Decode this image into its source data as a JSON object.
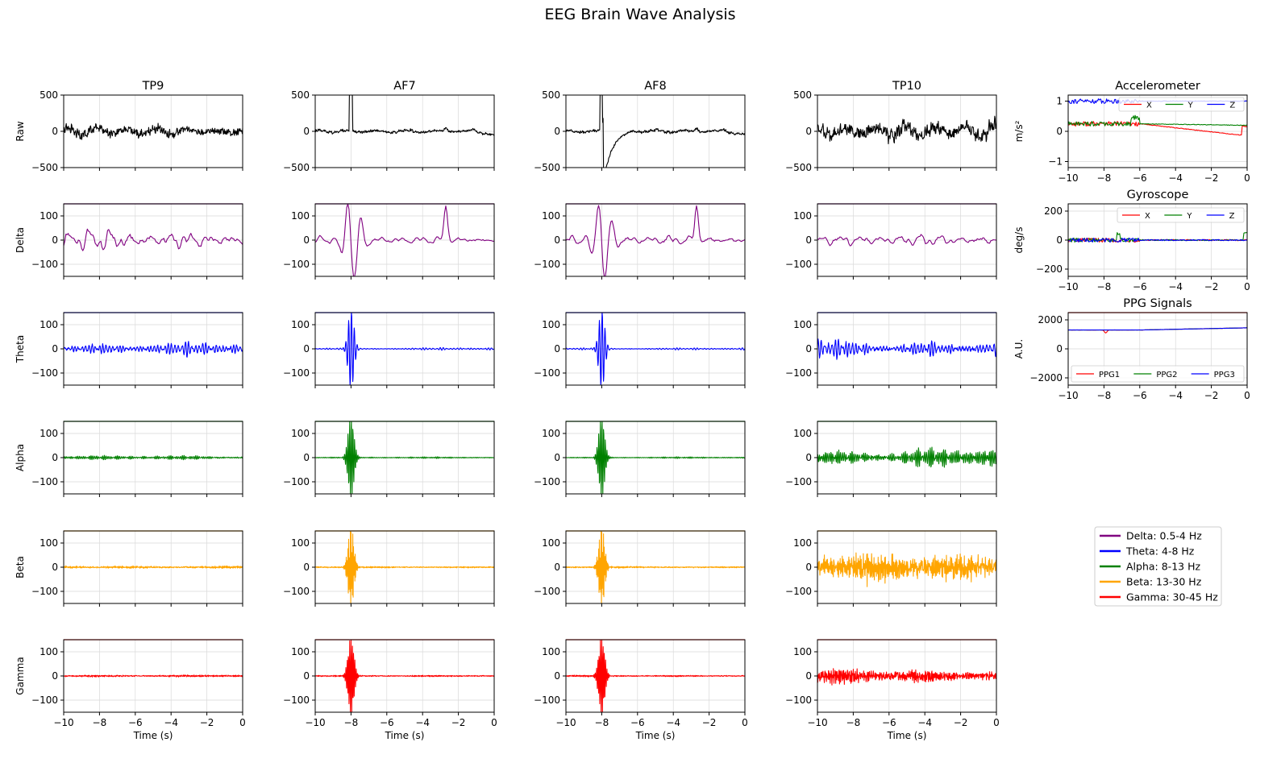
{
  "title": "EEG Brain Wave Analysis",
  "chart_data": {
    "type": "line",
    "title": "EEG Brain Wave Analysis",
    "xlabel": "Time (s)",
    "xlim": [
      -10,
      0
    ],
    "x_ticks": [
      -10,
      -8,
      -6,
      -4,
      -2,
      0
    ],
    "channels": [
      "TP9",
      "AF7",
      "AF8",
      "TP10"
    ],
    "rows": [
      {
        "name": "Raw",
        "color": "#000000",
        "ylim": [
          -500,
          500
        ],
        "yticks": [
          -500,
          0,
          500
        ]
      },
      {
        "name": "Delta",
        "color": "#800080",
        "ylim": [
          -150,
          150
        ],
        "yticks": [
          -100,
          0,
          100
        ]
      },
      {
        "name": "Theta",
        "color": "#0000ff",
        "ylim": [
          -150,
          150
        ],
        "yticks": [
          -100,
          0,
          100
        ]
      },
      {
        "name": "Alpha",
        "color": "#008000",
        "ylim": [
          -150,
          150
        ],
        "yticks": [
          -100,
          0,
          100
        ]
      },
      {
        "name": "Beta",
        "color": "#ffa500",
        "ylim": [
          -150,
          150
        ],
        "yticks": [
          -100,
          0,
          100
        ]
      },
      {
        "name": "Gamma",
        "color": "#ff0000",
        "ylim": [
          -150,
          150
        ],
        "yticks": [
          -100,
          0,
          100
        ]
      }
    ],
    "signal_amplitudes": {
      "Raw": {
        "TP9": 80,
        "AF7": 25,
        "AF8": 25,
        "TP10": 130
      },
      "Delta": {
        "TP9": 50,
        "AF7": 20,
        "AF8": 20,
        "TP10": 22
      },
      "Theta": {
        "TP9": 25,
        "AF7": 5,
        "AF8": 5,
        "TP10": 40
      },
      "Alpha": {
        "TP9": 8,
        "AF7": 3,
        "AF8": 3,
        "TP10": 40
      },
      "Beta": {
        "TP9": 5,
        "AF7": 3,
        "AF8": 3,
        "TP10": 50
      },
      "Gamma": {
        "TP9": 4,
        "AF7": 3,
        "AF8": 3,
        "TP10": 25
      }
    },
    "artifact_time": -8,
    "sensors": [
      {
        "title": "Accelerometer",
        "ylabel": "m/s²",
        "ylim": [
          -1.2,
          1.2
        ],
        "yticks": [
          -1,
          0,
          1
        ],
        "series": [
          {
            "name": "X",
            "color": "#ff0000",
            "level": 0.25,
            "end_level": -0.15
          },
          {
            "name": "Y",
            "color": "#008000",
            "level": 0.25,
            "end_level": 0.2
          },
          {
            "name": "Z",
            "color": "#0000ff",
            "level": 1.0,
            "end_level": 1.0
          }
        ]
      },
      {
        "title": "Gyroscope",
        "ylabel": "deg/s",
        "ylim": [
          -250,
          250
        ],
        "yticks": [
          -200,
          0,
          200
        ],
        "series": [
          {
            "name": "X",
            "color": "#ff0000",
            "level": 0,
            "end_level": 0
          },
          {
            "name": "Y",
            "color": "#008000",
            "level": 0,
            "end_level": 0
          },
          {
            "name": "Z",
            "color": "#0000ff",
            "level": 0,
            "end_level": 0
          }
        ]
      },
      {
        "title": "PPG Signals",
        "ylabel": "A.U.",
        "ylim": [
          -2500,
          2500
        ],
        "yticks": [
          -2000,
          0,
          2000
        ],
        "series": [
          {
            "name": "PPG1",
            "color": "#ff0000",
            "level": 1300,
            "end_level": 1450
          },
          {
            "name": "PPG2",
            "color": "#008000",
            "level": 1300,
            "end_level": 1450
          },
          {
            "name": "PPG3",
            "color": "#0000ff",
            "level": 1300,
            "end_level": 1450
          }
        ]
      }
    ],
    "band_legend": [
      {
        "label": "Delta: 0.5-4 Hz",
        "color": "#800080"
      },
      {
        "label": "Theta: 4-8 Hz",
        "color": "#0000ff"
      },
      {
        "label": "Alpha: 8-13 Hz",
        "color": "#008000"
      },
      {
        "label": "Beta: 13-30 Hz",
        "color": "#ffa500"
      },
      {
        "label": "Gamma: 30-45 Hz",
        "color": "#ff0000"
      }
    ]
  }
}
